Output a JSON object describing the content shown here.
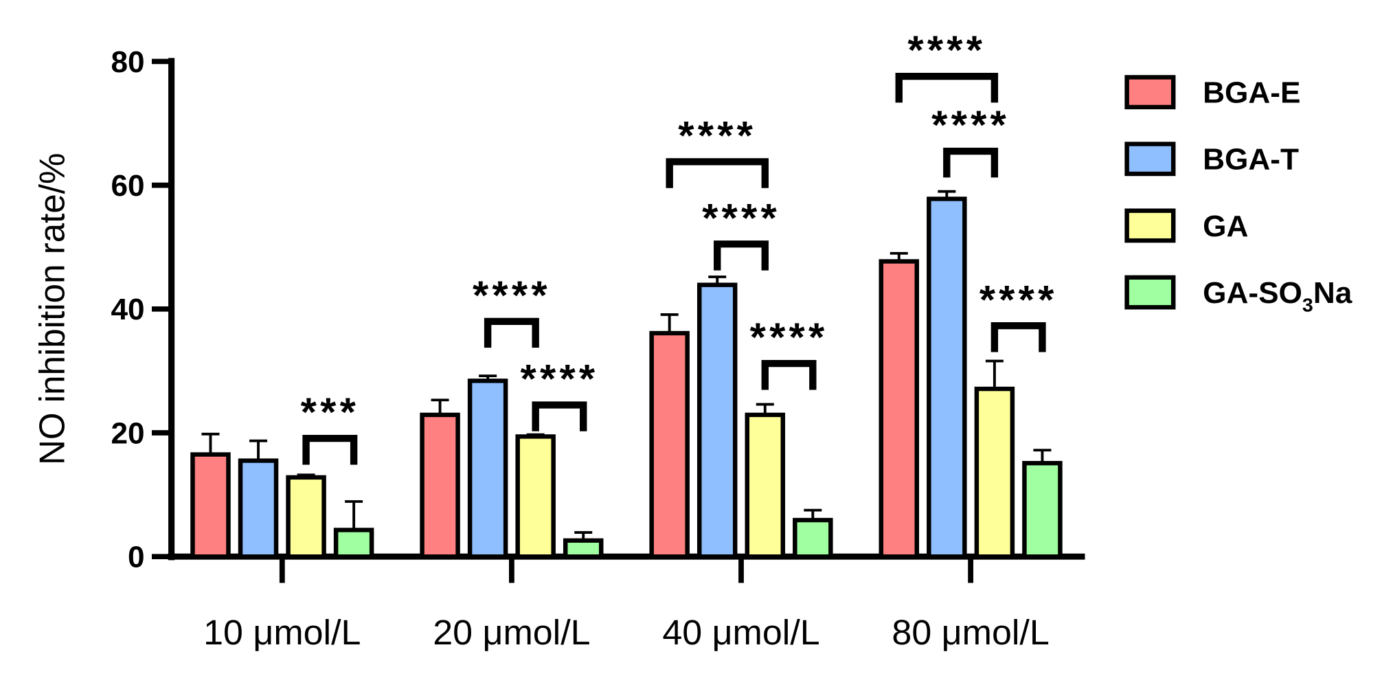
{
  "chart_data": {
    "type": "bar",
    "title": "",
    "xlabel": "",
    "ylabel": "NO inhibition rate/%",
    "ylim": [
      0,
      80
    ],
    "yticks": [
      "0",
      "20",
      "40",
      "60",
      "80"
    ],
    "categories": [
      "10 μmol/L",
      "20 μmol/L",
      "40 μmol/L",
      "80 μmol/L"
    ],
    "legend_position": "right",
    "series": [
      {
        "name": "BGA-E",
        "legend_main": "BGA-E",
        "legend_sub": "",
        "legend_tail": "",
        "color": "#FF8080",
        "values": [
          16.5,
          22.9,
          36.1,
          47.7
        ],
        "errors": [
          3.3,
          2.4,
          3.0,
          1.3
        ]
      },
      {
        "name": "BGA-T",
        "legend_main": "BGA-T",
        "legend_sub": "",
        "legend_tail": "",
        "color": "#8FBFFF",
        "values": [
          15.5,
          28.4,
          43.9,
          57.8
        ],
        "errors": [
          3.2,
          0.8,
          1.3,
          1.2
        ]
      },
      {
        "name": "GA",
        "legend_main": "GA",
        "legend_sub": "",
        "legend_tail": "",
        "color": "#FFFF99",
        "values": [
          12.8,
          19.4,
          22.9,
          27.1
        ],
        "errors": [
          0.4,
          0.3,
          1.7,
          4.5
        ]
      },
      {
        "name": "GA-SO3Na",
        "legend_main": "GA-SO",
        "legend_sub": "3",
        "legend_tail": "Na",
        "color": "#A0FFA0",
        "values": [
          4.3,
          2.6,
          5.9,
          15.1
        ],
        "errors": [
          4.6,
          1.3,
          1.6,
          2.1
        ]
      }
    ],
    "significance": [
      {
        "category": 0,
        "from": 2,
        "to": 3,
        "y": 19.1,
        "label": "***"
      },
      {
        "category": 1,
        "from": 1,
        "to": 2,
        "y": 38.0,
        "label": "****"
      },
      {
        "category": 1,
        "from": 2,
        "to": 3,
        "y": 24.5,
        "label": "****"
      },
      {
        "category": 2,
        "from": 0,
        "to": 2,
        "y": 63.8,
        "label": "****"
      },
      {
        "category": 2,
        "from": 1,
        "to": 2,
        "y": 50.5,
        "label": "****"
      },
      {
        "category": 2,
        "from": 2,
        "to": 3,
        "y": 31.2,
        "label": "****"
      },
      {
        "category": 3,
        "from": 0,
        "to": 2,
        "y": 77.6,
        "label": "****"
      },
      {
        "category": 3,
        "from": 1,
        "to": 2,
        "y": 65.5,
        "label": "****"
      },
      {
        "category": 3,
        "from": 2,
        "to": 3,
        "y": 37.3,
        "label": "****"
      }
    ]
  }
}
